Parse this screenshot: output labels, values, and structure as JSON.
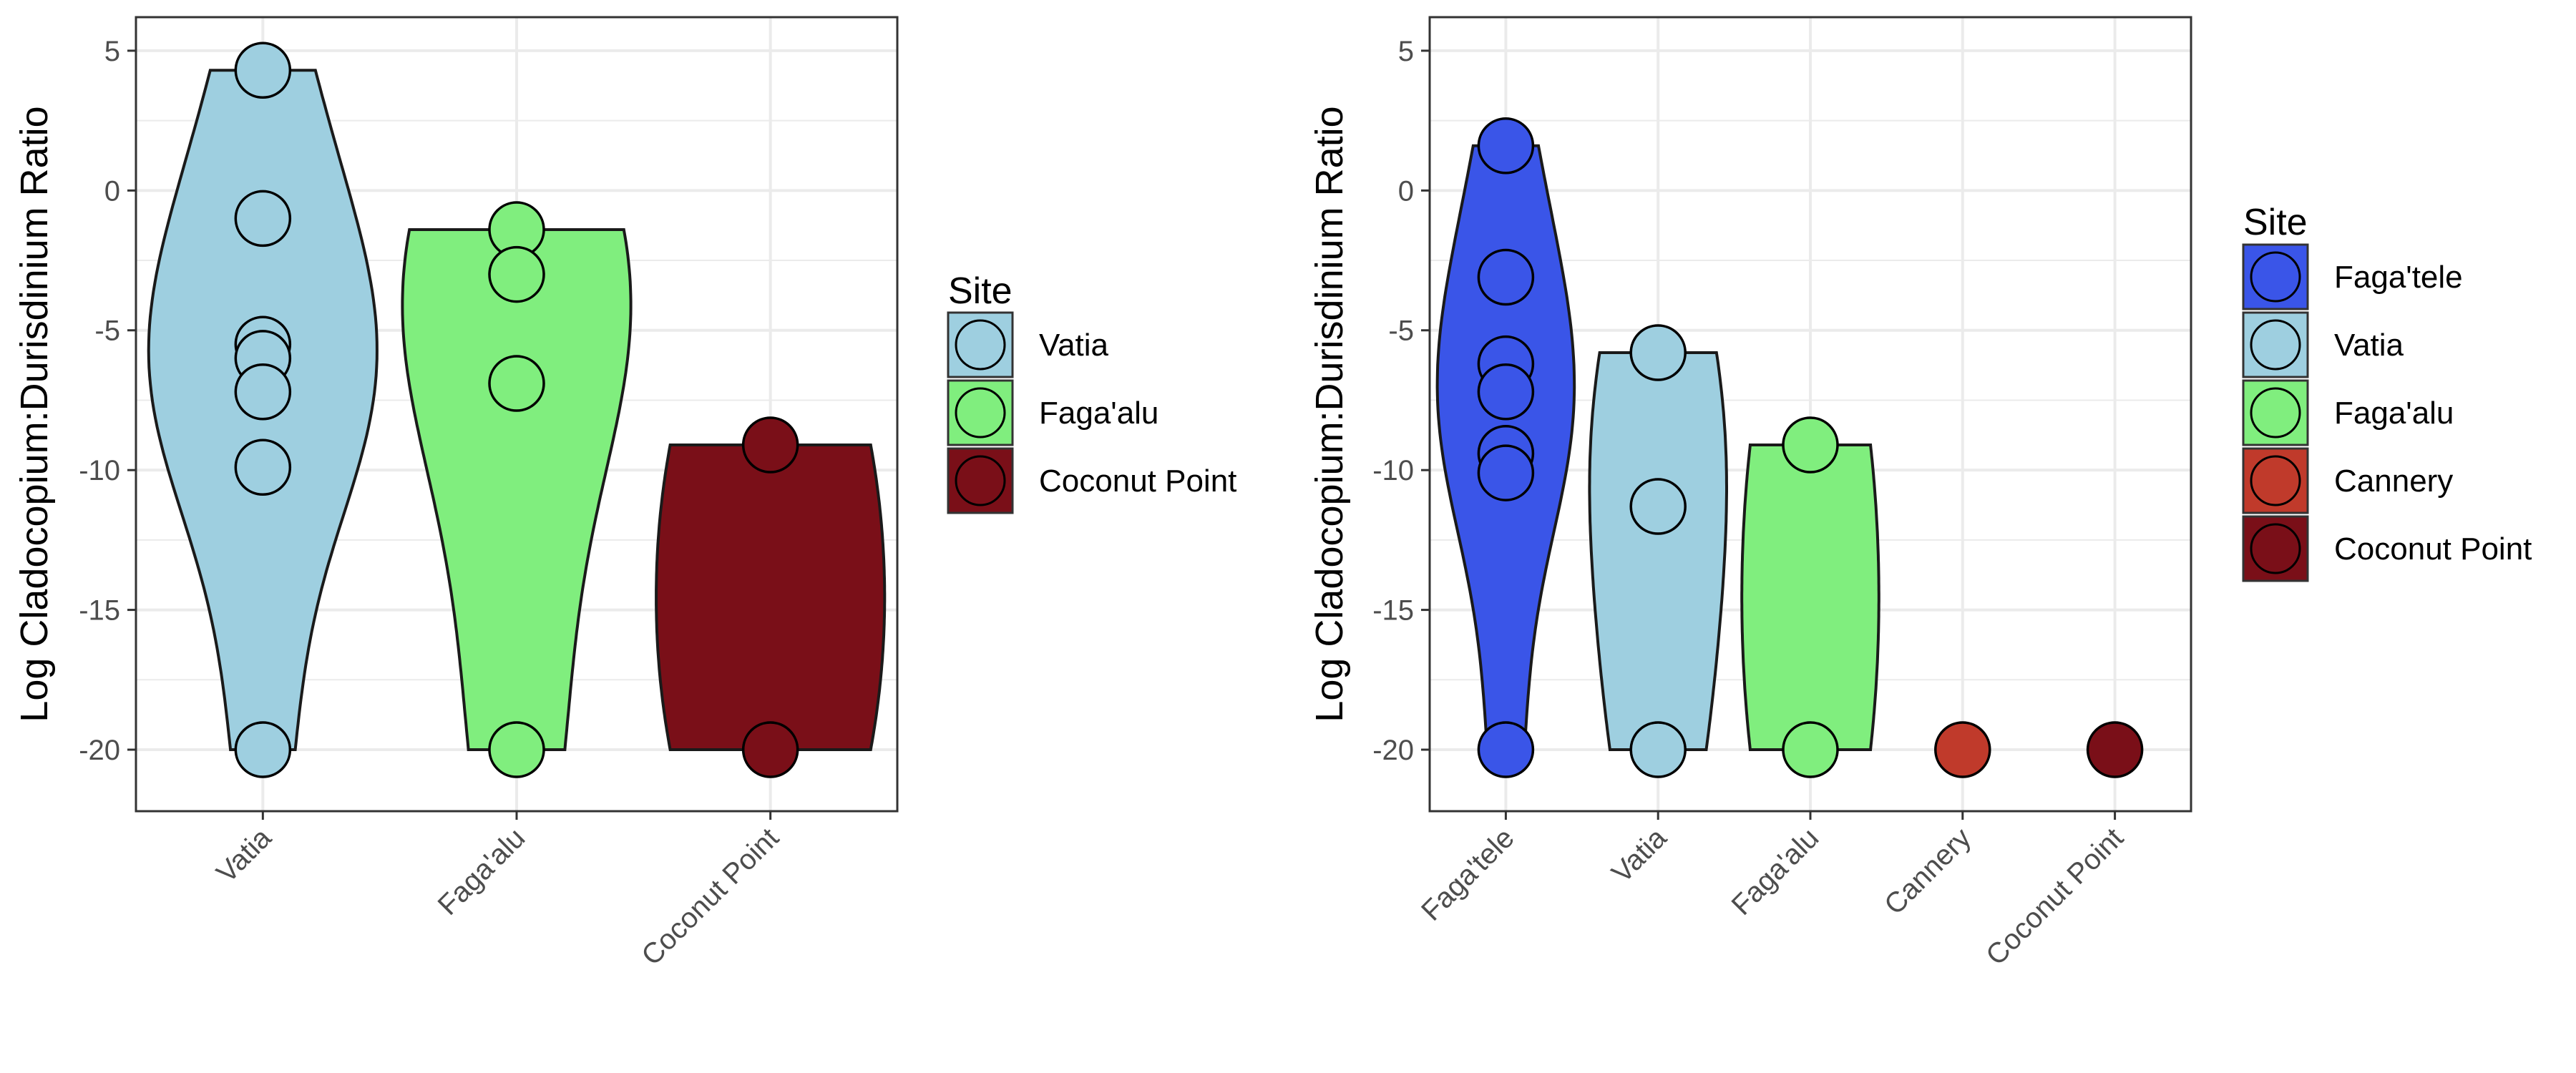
{
  "colors": {
    "Faga'tele": "#3a55e8",
    "Vatia": "#9ecfe0",
    "Faga'alu": "#80ee7e",
    "Cannery": "#c03a2b",
    "Coconut Point": "#7a0f18",
    "gridline": "#ebebeb",
    "panel_border": "#333333"
  },
  "chart_data": [
    {
      "type": "violin",
      "ylabel": "Log Cladocopium:Durisdinium Ratio",
      "xlabel": "",
      "ylim": [
        -22.2,
        6.2
      ],
      "yticks": [
        5,
        0,
        -5,
        -10,
        -15,
        -20
      ],
      "ytick_labels": [
        "5",
        "0",
        "-5",
        "-10",
        "-15",
        "-20"
      ],
      "grid": true,
      "categories": [
        "Vatia",
        "Faga'alu",
        "Coconut Point"
      ],
      "series": [
        {
          "site": "Vatia",
          "points": [
            4.3,
            -1.0,
            -5.5,
            -6.0,
            -7.2,
            -9.9,
            -20.0
          ]
        },
        {
          "site": "Faga'alu",
          "points": [
            -1.4,
            -3.0,
            -6.9,
            -20.0
          ]
        },
        {
          "site": "Coconut Point",
          "points": [
            -9.1,
            -20.0
          ]
        }
      ],
      "legend": {
        "title": "Site",
        "position": "right",
        "entries": [
          "Vatia",
          "Faga'alu",
          "Coconut Point"
        ]
      }
    },
    {
      "type": "violin",
      "ylabel": "Log Cladocopium:Durisdinium Ratio",
      "xlabel": "",
      "ylim": [
        -22.2,
        6.2
      ],
      "yticks": [
        5,
        0,
        -5,
        -10,
        -15,
        -20
      ],
      "ytick_labels": [
        "5",
        "0",
        "-5",
        "-10",
        "-15",
        "-20"
      ],
      "grid": true,
      "categories": [
        "Faga'tele",
        "Vatia",
        "Faga'alu",
        "Cannery",
        "Coconut Point"
      ],
      "series": [
        {
          "site": "Faga'tele",
          "points": [
            1.6,
            -3.1,
            -6.2,
            -7.2,
            -9.4,
            -10.1,
            -20.0
          ]
        },
        {
          "site": "Vatia",
          "points": [
            -5.8,
            -11.3,
            -20.0
          ]
        },
        {
          "site": "Faga'alu",
          "points": [
            -9.1,
            -20.0
          ]
        },
        {
          "site": "Cannery",
          "points": [
            -20.0
          ]
        },
        {
          "site": "Coconut Point",
          "points": [
            -20.0
          ]
        }
      ],
      "legend": {
        "title": "Site",
        "position": "right",
        "entries": [
          "Faga'tele",
          "Vatia",
          "Faga'alu",
          "Cannery",
          "Coconut Point"
        ]
      }
    }
  ]
}
